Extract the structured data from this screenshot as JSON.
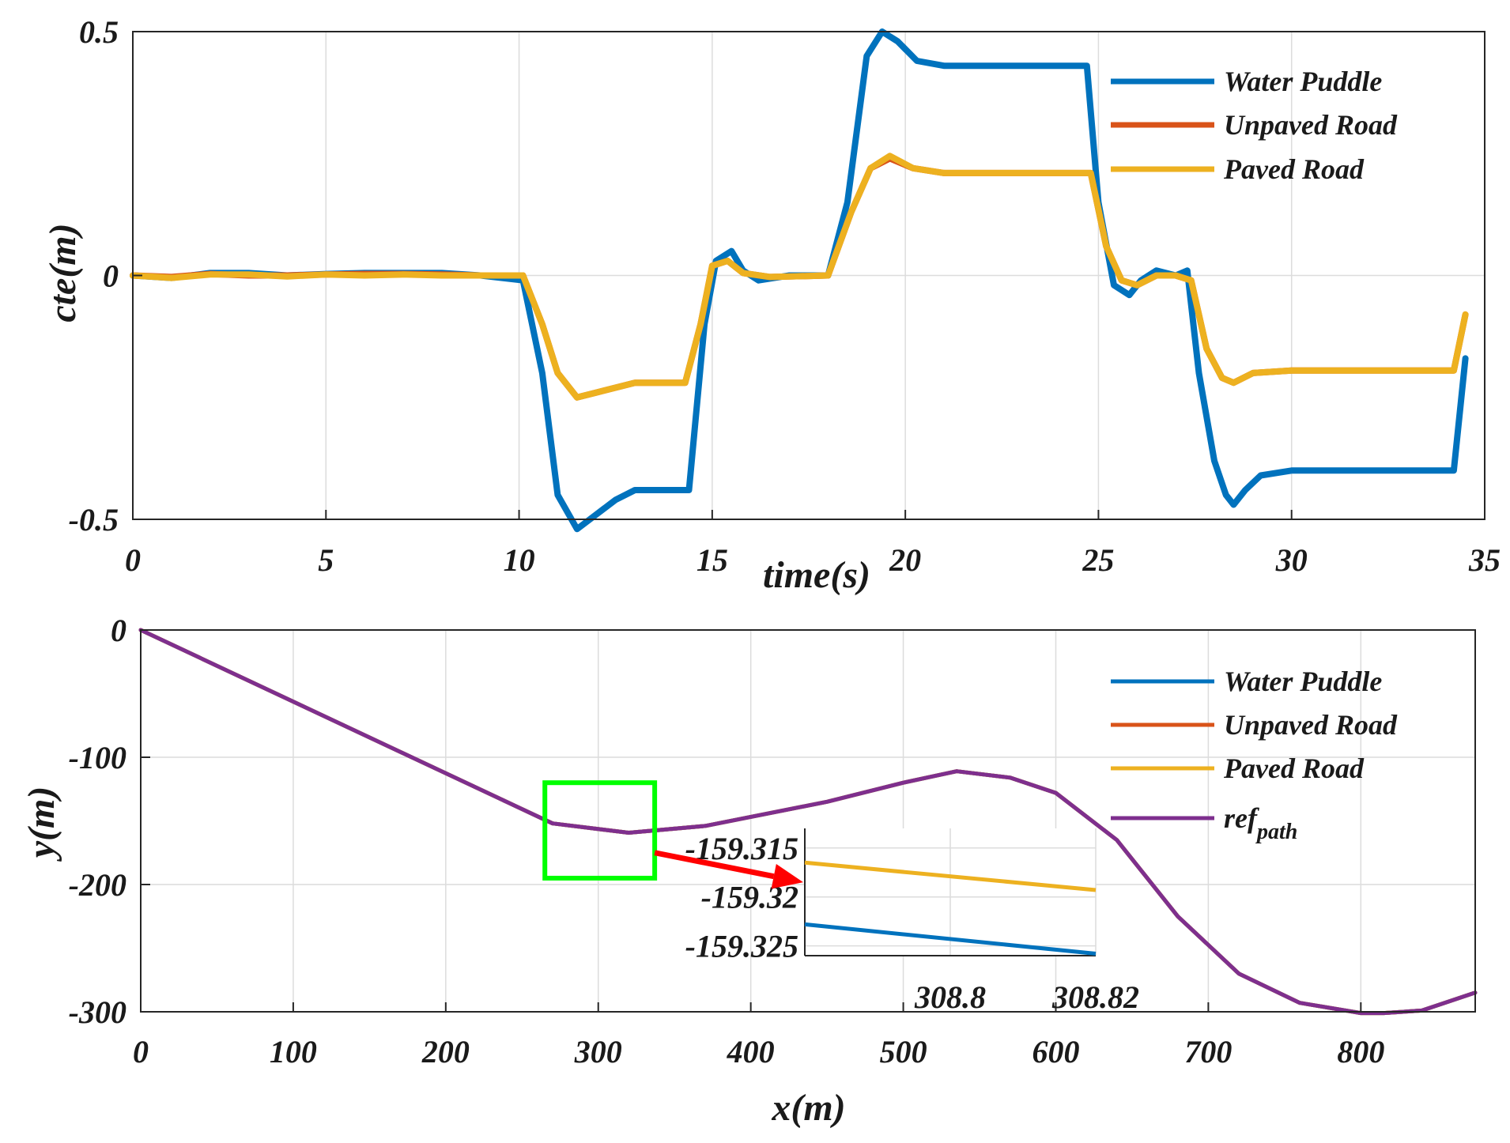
{
  "chart_data": [
    {
      "type": "line",
      "id": "cte",
      "xlabel": "time(s)",
      "ylabel": "cte(m)",
      "xlim": [
        0,
        35
      ],
      "ylim": [
        -0.5,
        0.5
      ],
      "xticks": [
        0,
        5,
        10,
        15,
        20,
        25,
        30,
        35
      ],
      "yticks": [
        -0.5,
        0,
        0.5
      ],
      "xtick_labels": [
        "0",
        "5",
        "10",
        "15",
        "20",
        "25",
        "30",
        "35"
      ],
      "ytick_labels": [
        "-0.5",
        "0",
        "0.5"
      ],
      "grid": true,
      "legend_position": "top-right",
      "series": [
        {
          "name": "Water Puddle",
          "color": "#0072BD",
          "x": [
            0,
            1,
            2,
            3,
            4,
            5,
            6,
            7,
            8,
            9,
            10.1,
            10.6,
            11.0,
            11.5,
            12.0,
            12.5,
            13.0,
            14.0,
            14.4,
            14.8,
            15.1,
            15.5,
            15.8,
            16.2,
            17.0,
            18.0,
            18.5,
            19.0,
            19.4,
            19.8,
            20.3,
            21.0,
            22.0,
            23.0,
            24.0,
            24.7,
            25.0,
            25.4,
            25.8,
            26.1,
            26.5,
            27.0,
            27.3,
            27.6,
            28.0,
            28.3,
            28.5,
            28.8,
            29.2,
            30.0,
            31.0,
            32.0,
            33.0,
            34.2,
            34.5
          ],
          "y": [
            0,
            -0.005,
            0.005,
            0.005,
            0,
            0.003,
            0.005,
            0.005,
            0.005,
            0,
            -0.01,
            -0.2,
            -0.45,
            -0.52,
            -0.49,
            -0.46,
            -0.44,
            -0.44,
            -0.44,
            -0.1,
            0.03,
            0.05,
            0.01,
            -0.01,
            0,
            0,
            0.15,
            0.45,
            0.5,
            0.48,
            0.44,
            0.43,
            0.43,
            0.43,
            0.43,
            0.43,
            0.15,
            -0.02,
            -0.04,
            -0.01,
            0.01,
            0,
            0.01,
            -0.2,
            -0.38,
            -0.45,
            -0.47,
            -0.44,
            -0.41,
            -0.4,
            -0.4,
            -0.4,
            -0.4,
            -0.4,
            -0.17
          ]
        },
        {
          "name": "Unpaved Road",
          "color": "#D95319",
          "x": [
            0,
            1,
            2,
            3,
            4,
            5,
            6,
            7,
            8,
            9,
            10.1,
            10.6,
            11.0,
            11.5,
            12.0,
            13.0,
            14.3,
            14.7,
            15.0,
            15.4,
            15.8,
            16.5,
            18.0,
            18.6,
            19.1,
            19.6,
            20.2,
            21.0,
            22.0,
            23.0,
            24.0,
            24.8,
            25.2,
            25.6,
            26.0,
            26.5,
            27.0,
            27.4,
            27.8,
            28.2,
            28.5,
            29.0,
            30.0,
            31.0,
            32.0,
            33.0,
            34.2,
            34.5
          ],
          "y": [
            0,
            -0.003,
            0.003,
            0,
            0,
            0.002,
            0.003,
            0.003,
            0.002,
            0,
            0,
            -0.1,
            -0.2,
            -0.25,
            -0.24,
            -0.22,
            -0.22,
            -0.1,
            0.02,
            0.03,
            0.005,
            -0.003,
            0,
            0.13,
            0.22,
            0.24,
            0.22,
            0.21,
            0.21,
            0.21,
            0.21,
            0.21,
            0.06,
            -0.01,
            -0.02,
            0,
            0,
            -0.01,
            -0.15,
            -0.21,
            -0.22,
            -0.2,
            -0.195,
            -0.195,
            -0.195,
            -0.195,
            -0.195,
            -0.08
          ]
        },
        {
          "name": "Paved Road",
          "color": "#EDB120",
          "x": [
            0,
            1,
            2,
            3,
            4,
            5,
            6,
            7,
            8,
            9,
            10.1,
            10.6,
            11.0,
            11.5,
            12.0,
            13.0,
            14.3,
            14.7,
            15.0,
            15.4,
            15.8,
            16.5,
            18.0,
            18.6,
            19.1,
            19.6,
            20.2,
            21.0,
            22.0,
            23.0,
            24.0,
            24.8,
            25.2,
            25.6,
            26.0,
            26.5,
            27.0,
            27.4,
            27.8,
            28.2,
            28.5,
            29.0,
            30.0,
            31.0,
            32.0,
            33.0,
            34.2,
            34.5
          ],
          "y": [
            0,
            -0.005,
            0.002,
            0.002,
            -0.002,
            0.002,
            0,
            0.002,
            0,
            0,
            0,
            -0.1,
            -0.2,
            -0.25,
            -0.24,
            -0.22,
            -0.22,
            -0.1,
            0.02,
            0.03,
            0.005,
            -0.003,
            0,
            0.13,
            0.22,
            0.245,
            0.22,
            0.21,
            0.21,
            0.21,
            0.21,
            0.21,
            0.06,
            -0.01,
            -0.02,
            0,
            0,
            -0.01,
            -0.15,
            -0.21,
            -0.22,
            -0.2,
            -0.195,
            -0.195,
            -0.195,
            -0.195,
            -0.195,
            -0.08
          ]
        }
      ]
    },
    {
      "type": "line",
      "id": "path",
      "xlabel": "x(m)",
      "ylabel": "y(m)",
      "xlim": [
        0,
        875
      ],
      "ylim": [
        -300,
        0
      ],
      "xticks": [
        0,
        100,
        200,
        300,
        400,
        500,
        600,
        700,
        800
      ],
      "yticks": [
        -300,
        -200,
        -100,
        0
      ],
      "xtick_labels": [
        "0",
        "100",
        "200",
        "300",
        "400",
        "500",
        "600",
        "700",
        "800"
      ],
      "ytick_labels": [
        "-300",
        "-200",
        "-100",
        "0"
      ],
      "grid": true,
      "legend_position": "top-right",
      "series": [
        {
          "name": "Water Puddle",
          "color": "#0072BD",
          "x": [
            0,
            270,
            320,
            370,
            450,
            500,
            535,
            570,
            600,
            640,
            680,
            720,
            760,
            800,
            815,
            840,
            875
          ],
          "y": [
            0,
            -152,
            -159.3,
            -154,
            -135,
            -120,
            -111,
            -116,
            -128,
            -165,
            -225,
            -270,
            -293,
            -301,
            -301,
            -299,
            -285
          ]
        },
        {
          "name": "Unpaved Road",
          "color": "#D95319",
          "x": [
            0,
            270,
            320,
            370,
            450,
            500,
            535,
            570,
            600,
            640,
            680,
            720,
            760,
            800,
            815,
            840,
            875
          ],
          "y": [
            0,
            -152,
            -159.3,
            -154,
            -135,
            -120,
            -111,
            -116,
            -128,
            -165,
            -225,
            -270,
            -293,
            -301,
            -301,
            -299,
            -285
          ]
        },
        {
          "name": "Paved Road",
          "color": "#EDB120",
          "x": [
            0,
            270,
            320,
            370,
            450,
            500,
            535,
            570,
            600,
            640,
            680,
            720,
            760,
            800,
            815,
            840,
            875
          ],
          "y": [
            0,
            -152,
            -159.3,
            -154,
            -135,
            -120,
            -111,
            -116,
            -128,
            -165,
            -225,
            -270,
            -293,
            -301,
            -301,
            -299,
            -285
          ]
        },
        {
          "name": "ref",
          "name_subscript": "path",
          "color": "#7E2F8E",
          "x": [
            0,
            270,
            320,
            370,
            450,
            500,
            535,
            570,
            600,
            640,
            680,
            720,
            760,
            800,
            815,
            840,
            875
          ],
          "y": [
            0,
            -152,
            -159.3,
            -154,
            -135,
            -120,
            -111,
            -116,
            -128,
            -165,
            -225,
            -270,
            -293,
            -301,
            -301,
            -299,
            -285
          ]
        }
      ],
      "zoom_box": {
        "x": [
          265,
          337
        ],
        "y": [
          -195,
          -120
        ],
        "color": "#00FF00"
      },
      "inset": {
        "xlim": [
          308.78,
          308.82
        ],
        "ylim": [
          -159.326,
          -159.313
        ],
        "xticks": [
          308.8,
          308.82
        ],
        "yticks": [
          -159.325,
          -159.32,
          -159.315
        ],
        "xtick_labels": [
          "308.8",
          "308.82"
        ],
        "ytick_labels": [
          "-159.325",
          "-159.32",
          "-159.315"
        ],
        "series": [
          {
            "name": "Paved Road",
            "color": "#EDB120",
            "x": [
              308.78,
              308.82
            ],
            "y": [
              -159.3165,
              -159.3193
            ]
          },
          {
            "name": "Water Puddle",
            "color": "#0072BD",
            "x": [
              308.78,
              308.82
            ],
            "y": [
              -159.3228,
              -159.3258
            ]
          }
        ]
      },
      "arrow_color": "#FF0000"
    }
  ]
}
